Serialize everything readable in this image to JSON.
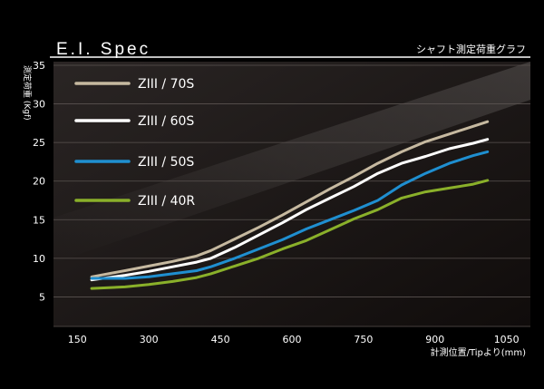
{
  "header": {
    "title": "E.I. Spec",
    "subtitle": "シャフト測定荷重グラフ"
  },
  "colors": {
    "background": "#000000",
    "plot_bg": "#1a1514",
    "grid": "#5a5350",
    "axis_text": "#ffffff",
    "header_line": "#ffffff"
  },
  "chart_data": {
    "type": "line",
    "xlabel": "計測位置/Tipより(mm)",
    "ylabel": "測定荷重 (Kgf)",
    "xlim": [
      100,
      1100
    ],
    "ylim": [
      0,
      35
    ],
    "xticks": [
      150,
      300,
      450,
      600,
      750,
      900,
      1050
    ],
    "yticks": [
      5,
      10,
      15,
      20,
      25,
      30,
      35
    ],
    "grid": true,
    "legend_position": "top-left",
    "series": [
      {
        "name": "ZIII / 70S",
        "color": "#c6b9a0",
        "x": [
          180,
          250,
          300,
          350,
          400,
          430,
          480,
          530,
          580,
          630,
          680,
          730,
          780,
          830,
          880,
          930,
          980,
          1010
        ],
        "y": [
          7.6,
          8.4,
          9.0,
          9.6,
          10.3,
          11.0,
          12.5,
          14.0,
          15.6,
          17.3,
          19.0,
          20.6,
          22.3,
          23.8,
          25.1,
          26.1,
          27.1,
          27.7
        ]
      },
      {
        "name": "ZIII / 60S",
        "color": "#ffffff",
        "x": [
          180,
          250,
          300,
          350,
          400,
          430,
          480,
          530,
          580,
          630,
          680,
          730,
          780,
          830,
          880,
          930,
          980,
          1010
        ],
        "y": [
          7.2,
          7.8,
          8.3,
          8.9,
          9.5,
          10.0,
          11.4,
          13.0,
          14.6,
          16.3,
          17.8,
          19.3,
          21.0,
          22.3,
          23.2,
          24.2,
          24.9,
          25.4
        ]
      },
      {
        "name": "ZIII / 50S",
        "color": "#1f8fd0",
        "x": [
          180,
          250,
          300,
          350,
          400,
          430,
          480,
          530,
          580,
          630,
          680,
          730,
          780,
          830,
          880,
          930,
          980,
          1010
        ],
        "y": [
          7.4,
          7.4,
          7.6,
          8.0,
          8.4,
          8.9,
          10.0,
          11.2,
          12.4,
          13.8,
          15.0,
          16.2,
          17.5,
          19.5,
          21.0,
          22.3,
          23.3,
          23.8
        ]
      },
      {
        "name": "ZIII / 40R",
        "color": "#8ab02a",
        "x": [
          180,
          250,
          300,
          350,
          400,
          430,
          480,
          530,
          580,
          630,
          680,
          730,
          780,
          830,
          880,
          930,
          980,
          1010
        ],
        "y": [
          6.1,
          6.3,
          6.6,
          7.0,
          7.5,
          8.0,
          9.0,
          10.0,
          11.2,
          12.3,
          13.7,
          15.1,
          16.3,
          17.8,
          18.6,
          19.1,
          19.6,
          20.1
        ]
      }
    ]
  }
}
